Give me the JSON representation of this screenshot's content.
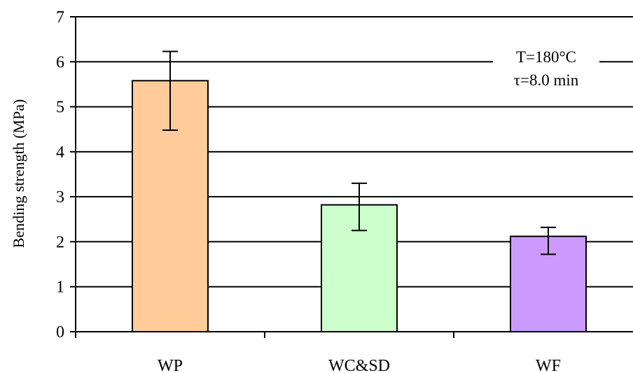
{
  "chart_data": {
    "type": "bar",
    "categories": [
      "WP",
      "WC&SD",
      "WF"
    ],
    "values": [
      5.58,
      2.82,
      2.12
    ],
    "error_low": [
      4.48,
      2.25,
      1.72
    ],
    "error_high": [
      6.23,
      3.3,
      2.32
    ],
    "bar_colors": [
      "#ffcc99",
      "#ccffcc",
      "#cc99ff"
    ],
    "ylabel": "Bending strength (MPa)",
    "xlabel": "",
    "ylim": [
      0,
      7
    ],
    "yticks": [
      0,
      1,
      2,
      3,
      4,
      5,
      6,
      7
    ],
    "grid": true,
    "annotation": [
      "T=180°C",
      "τ=8.0 min"
    ]
  }
}
